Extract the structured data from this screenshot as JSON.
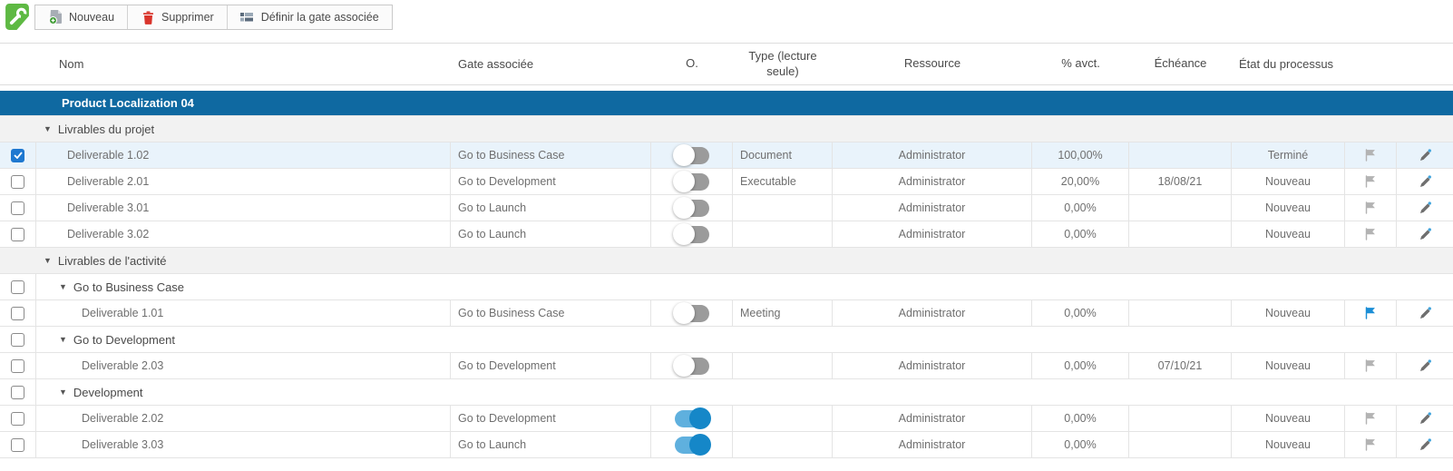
{
  "toolbar": {
    "logo_icon": "wrench-icon",
    "buttons": [
      {
        "label": "Nouveau",
        "icon": "new-document-icon"
      },
      {
        "label": "Supprimer",
        "icon": "trash-icon"
      },
      {
        "label": "Définir la gate associée",
        "icon": "gate-table-icon"
      }
    ]
  },
  "colors": {
    "logo_green": "#5eb943",
    "project_header_blue": "#0f69a1",
    "selected_row_blue": "#e9f3fb",
    "toggle_on_track": "#5fb0de",
    "toggle_on_knob": "#1587c8",
    "flag_blue": "#1b8ed6",
    "flag_gray": "#b3b3b3",
    "checkbox_checked_blue": "#1e78d0",
    "delete_red": "#d9342b"
  },
  "table": {
    "columns": {
      "nom": "Nom",
      "gate": "Gate associée",
      "o": "O.",
      "type": "Type (lecture seule)",
      "resource": "Ressource",
      "pct": "% avct.",
      "due": "Échéance",
      "status": "État du processus"
    },
    "rows": [
      {
        "kind": "project",
        "label": "Product Localization 04"
      },
      {
        "kind": "group",
        "label": "Livrables du projet"
      },
      {
        "kind": "item",
        "indent": 1,
        "checked": true,
        "selected": true,
        "name": "Deliverable 1.02",
        "gate": "Go to Business Case",
        "toggle": "off",
        "type": "Document",
        "resource": "Administrator",
        "pct": "100,00%",
        "due": "",
        "status": "Terminé",
        "flag": "gray"
      },
      {
        "kind": "item",
        "indent": 1,
        "checked": false,
        "name": "Deliverable 2.01",
        "gate": "Go to Development",
        "toggle": "off",
        "type": "Executable",
        "resource": "Administrator",
        "pct": "20,00%",
        "due": "18/08/21",
        "status": "Nouveau",
        "flag": "gray"
      },
      {
        "kind": "item",
        "indent": 1,
        "checked": false,
        "name": "Deliverable 3.01",
        "gate": "Go to Launch",
        "toggle": "off",
        "type": "",
        "resource": "Administrator",
        "pct": "0,00%",
        "due": "",
        "status": "Nouveau",
        "flag": "gray"
      },
      {
        "kind": "item",
        "indent": 1,
        "checked": false,
        "name": "Deliverable 3.02",
        "gate": "Go to Launch",
        "toggle": "off",
        "type": "",
        "resource": "Administrator",
        "pct": "0,00%",
        "due": "",
        "status": "Nouveau",
        "flag": "gray"
      },
      {
        "kind": "group",
        "label": "Livrables de l'activité"
      },
      {
        "kind": "subgroup",
        "label": "Go to Business Case"
      },
      {
        "kind": "item",
        "indent": 2,
        "checked": false,
        "name": "Deliverable 1.01",
        "gate": "Go to Business Case",
        "toggle": "off",
        "type": "Meeting",
        "resource": "Administrator",
        "pct": "0,00%",
        "due": "",
        "status": "Nouveau",
        "flag": "blue"
      },
      {
        "kind": "subgroup",
        "label": "Go to Development"
      },
      {
        "kind": "item",
        "indent": 2,
        "checked": false,
        "name": "Deliverable 2.03",
        "gate": "Go to Development",
        "toggle": "off",
        "type": "",
        "resource": "Administrator",
        "pct": "0,00%",
        "due": "07/10/21",
        "status": "Nouveau",
        "flag": "gray"
      },
      {
        "kind": "subgroup",
        "label": "Development"
      },
      {
        "kind": "item",
        "indent": 2,
        "checked": false,
        "name": "Deliverable 2.02",
        "gate": "Go to Development",
        "toggle": "on",
        "type": "",
        "resource": "Administrator",
        "pct": "0,00%",
        "due": "",
        "status": "Nouveau",
        "flag": "gray"
      },
      {
        "kind": "item",
        "indent": 2,
        "checked": false,
        "name": "Deliverable 3.03",
        "gate": "Go to Launch",
        "toggle": "on",
        "type": "",
        "resource": "Administrator",
        "pct": "0,00%",
        "due": "",
        "status": "Nouveau",
        "flag": "gray"
      }
    ]
  }
}
